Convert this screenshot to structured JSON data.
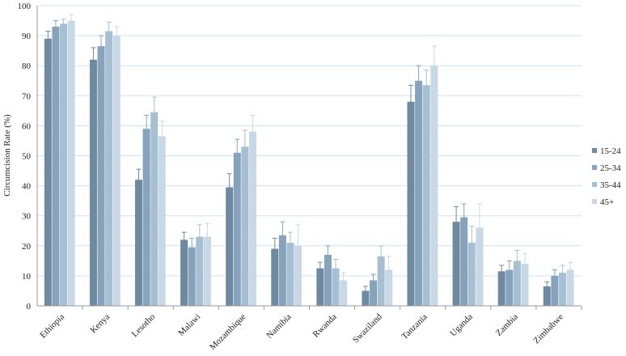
{
  "chart_data": {
    "type": "bar",
    "title": "",
    "xlabel": "",
    "ylabel": "Circumcision Rate (%)",
    "ylim": [
      0,
      100
    ],
    "yticks": [
      0,
      10,
      20,
      30,
      40,
      50,
      60,
      70,
      80,
      90,
      100
    ],
    "grid": true,
    "legend_position": "right",
    "categories": [
      "Ethiopia",
      "Kenya",
      "Lesotho",
      "Malawi",
      "Mozambique",
      "Namibia",
      "Rwanda",
      "Swaziland",
      "Tanzania",
      "Uganda",
      "Zambia",
      "Zimbabwe"
    ],
    "series": [
      {
        "name": "15-24",
        "color": "#6f8aa0",
        "values": [
          89,
          82,
          42,
          22,
          39.5,
          19,
          12.5,
          5,
          68,
          28,
          11.5,
          6.5
        ],
        "error": [
          2.5,
          4,
          3.5,
          2.5,
          4.5,
          3.5,
          2,
          1.5,
          5.5,
          5,
          2,
          1.5
        ]
      },
      {
        "name": "25-34",
        "color": "#87a3bc",
        "values": [
          93,
          86.5,
          59,
          19.5,
          51,
          23.5,
          17,
          8.5,
          75,
          29.5,
          12,
          10
        ],
        "error": [
          2,
          3.5,
          4.5,
          3,
          4.5,
          4.5,
          3,
          2,
          5,
          4.5,
          3,
          2
        ]
      },
      {
        "name": "35-44",
        "color": "#a7bfd2",
        "values": [
          94,
          91.5,
          64.5,
          23,
          53,
          21,
          12.5,
          16.5,
          73.5,
          21,
          15,
          11
        ],
        "error": [
          1.5,
          3,
          5,
          4,
          5.5,
          3.5,
          3,
          3.5,
          5,
          5.5,
          3.5,
          2.5
        ]
      },
      {
        "name": "45+",
        "color": "#c8d8e5",
        "values": [
          95,
          90,
          56.5,
          23,
          58,
          20,
          8.5,
          12,
          80,
          26,
          14,
          12
        ],
        "error": [
          2,
          3,
          5,
          4.5,
          5.5,
          7,
          2.5,
          4.5,
          6.5,
          8,
          3.5,
          2.5
        ]
      }
    ]
  }
}
